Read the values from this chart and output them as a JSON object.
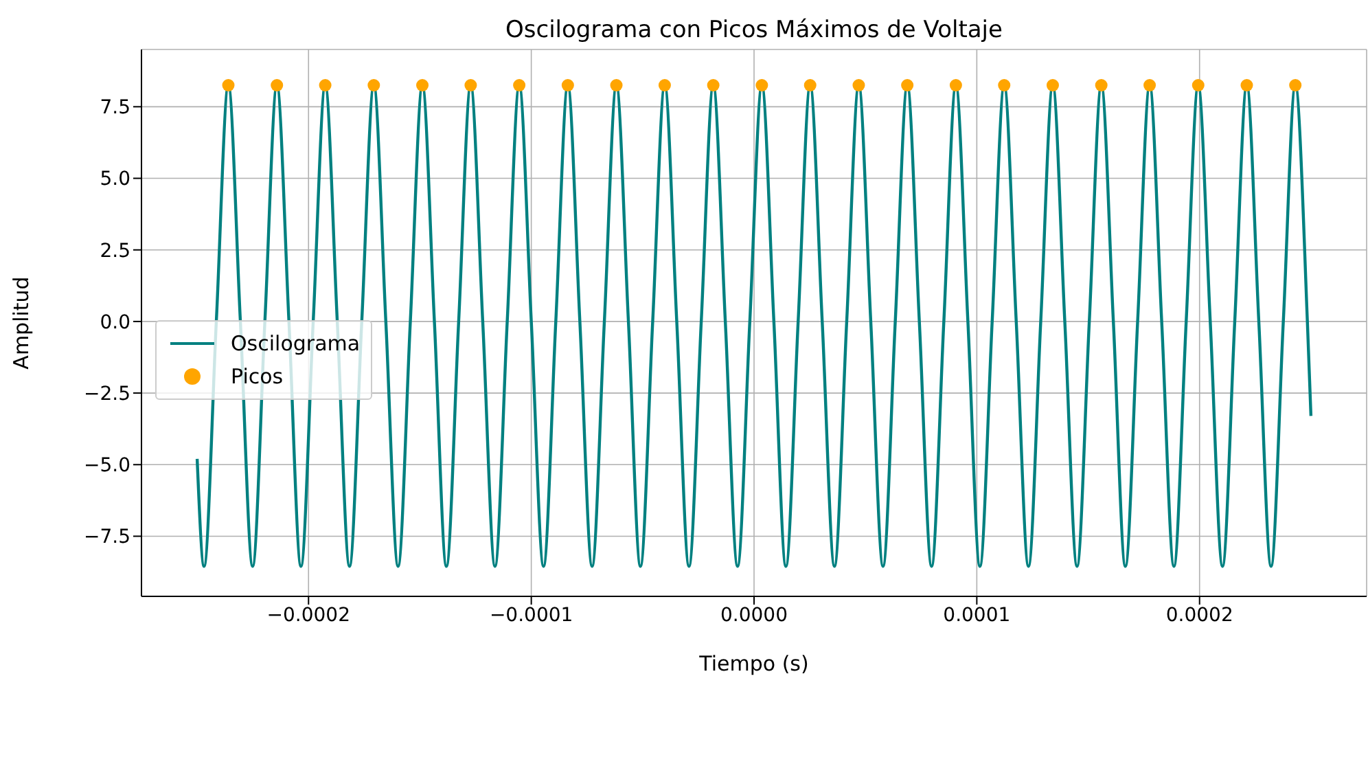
{
  "chart_data": {
    "type": "line",
    "title": "Oscilograma con Picos Máximos de Voltaje",
    "xlabel": "Tiempo (s)",
    "ylabel": "Amplitud",
    "xlim": [
      -0.000275,
      0.000275
    ],
    "ylim": [
      -9.6,
      9.5
    ],
    "xticks": [
      {
        "value": -0.0002,
        "label": "−0.0002"
      },
      {
        "value": -0.0001,
        "label": "−0.0001"
      },
      {
        "value": 0,
        "label": "0.0000"
      },
      {
        "value": 0.0001,
        "label": "0.0001"
      },
      {
        "value": 0.0002,
        "label": "0.0002"
      }
    ],
    "yticks": [
      {
        "value": -7.5,
        "label": "−7.5"
      },
      {
        "value": -5,
        "label": "−5.0"
      },
      {
        "value": -2.5,
        "label": "−2.5"
      },
      {
        "value": 0,
        "label": "0.0"
      },
      {
        "value": 2.5,
        "label": "2.5"
      },
      {
        "value": 5,
        "label": "5.0"
      },
      {
        "value": 7.5,
        "label": "7.5"
      }
    ],
    "grid": true,
    "legend": "center left",
    "marker": "none",
    "line_style": "solid",
    "series": [
      {
        "name": "Oscilograma",
        "color": "#008080",
        "x": [
          -0.00025,
          -0.0002469,
          -0.0002414,
          -0.000236,
          -0.0002306,
          -0.0002251,
          -0.0002196,
          -0.0002142,
          -0.0002088,
          -0.0002034,
          -0.0001979,
          -0.0001925,
          -0.0001871,
          -0.0001816,
          -0.0001761,
          -0.0001707,
          -0.0001653,
          -0.0001598,
          -0.0001543,
          -0.0001489,
          -0.0001435,
          -0.0001381,
          -0.0001326,
          -0.0001272,
          -0.0001218,
          -0.0001163,
          -0.0001108,
          -0.0001054,
          -0.0001,
          -9.45e-05,
          -8.9e-05,
          -8.36e-05,
          -7.82e-05,
          -7.27e-05,
          -6.72e-05,
          -6.18e-05,
          -5.64e-05,
          -5.1e-05,
          -4.55e-05,
          -4.01e-05,
          -3.47e-05,
          -2.92e-05,
          -2.37e-05,
          -1.83e-05,
          -1.29e-05,
          -7.4e-06,
          -1.9e-06,
          3.5e-06,
          8.9e-06,
          1.43e-05,
          1.98e-05,
          2.52e-05,
          3.06e-05,
          3.61e-05,
          4.16e-05,
          4.7e-05,
          5.24e-05,
          5.79e-05,
          6.34e-05,
          6.88e-05,
          7.42e-05,
          7.97e-05,
          8.52e-05,
          9.06e-05,
          9.6e-05,
          0.0001014,
          0.0001069,
          0.0001123,
          0.0001177,
          0.0001232,
          0.0001287,
          0.0001341,
          0.0001395,
          0.000145,
          0.0001505,
          0.0001559,
          0.0001613,
          0.0001667,
          0.0001722,
          0.0001776,
          0.000183,
          0.0001885,
          0.000194,
          0.0001994,
          0.0002048,
          0.0002103,
          0.0002158,
          0.0002212,
          0.0002266,
          0.0002321,
          0.0002376,
          0.000243,
          0.0002484,
          0.00025
        ],
        "values": [
          -4.8,
          -8.55,
          0,
          8.25,
          0,
          -8.55,
          0,
          8.25,
          0,
          -8.55,
          0,
          8.25,
          0,
          -8.55,
          0,
          8.25,
          0,
          -8.55,
          0,
          8.25,
          0,
          -8.55,
          0,
          8.25,
          0,
          -8.55,
          0,
          8.25,
          0,
          -8.55,
          0,
          8.25,
          0,
          -8.55,
          0,
          8.25,
          0,
          -8.55,
          0,
          8.25,
          0,
          -8.55,
          0,
          8.25,
          0,
          -8.55,
          0,
          8.25,
          0,
          -8.55,
          0,
          8.25,
          0,
          -8.55,
          0,
          8.25,
          0,
          -8.55,
          0,
          8.25,
          0,
          -8.55,
          0,
          8.25,
          0,
          -8.55,
          0,
          8.25,
          0,
          -8.55,
          0,
          8.25,
          0,
          -8.55,
          0,
          8.25,
          0,
          -8.55,
          0,
          8.25,
          0,
          -8.55,
          0,
          8.25,
          0,
          -8.55,
          0,
          8.25,
          0,
          -8.55,
          0,
          8.25,
          0,
          -3.3
        ]
      },
      {
        "name": "Picos",
        "type": "scatter",
        "color": "#ffa500",
        "marker": "circle",
        "x": [
          -0.000236,
          -0.0002142,
          -0.0001925,
          -0.0001707,
          -0.0001489,
          -0.0001272,
          -0.0001054,
          -8.36e-05,
          -6.18e-05,
          -4.01e-05,
          -1.83e-05,
          3.5e-06,
          2.52e-05,
          4.7e-05,
          6.88e-05,
          9.06e-05,
          0.0001123,
          0.0001341,
          0.0001559,
          0.0001776,
          0.0001994,
          0.0002212,
          0.000243
        ],
        "values": [
          8.25,
          8.25,
          8.25,
          8.25,
          8.25,
          8.25,
          8.25,
          8.25,
          8.25,
          8.25,
          8.25,
          8.25,
          8.25,
          8.25,
          8.25,
          8.25,
          8.25,
          8.25,
          8.25,
          8.25,
          8.25,
          8.25,
          8.25
        ]
      }
    ]
  }
}
